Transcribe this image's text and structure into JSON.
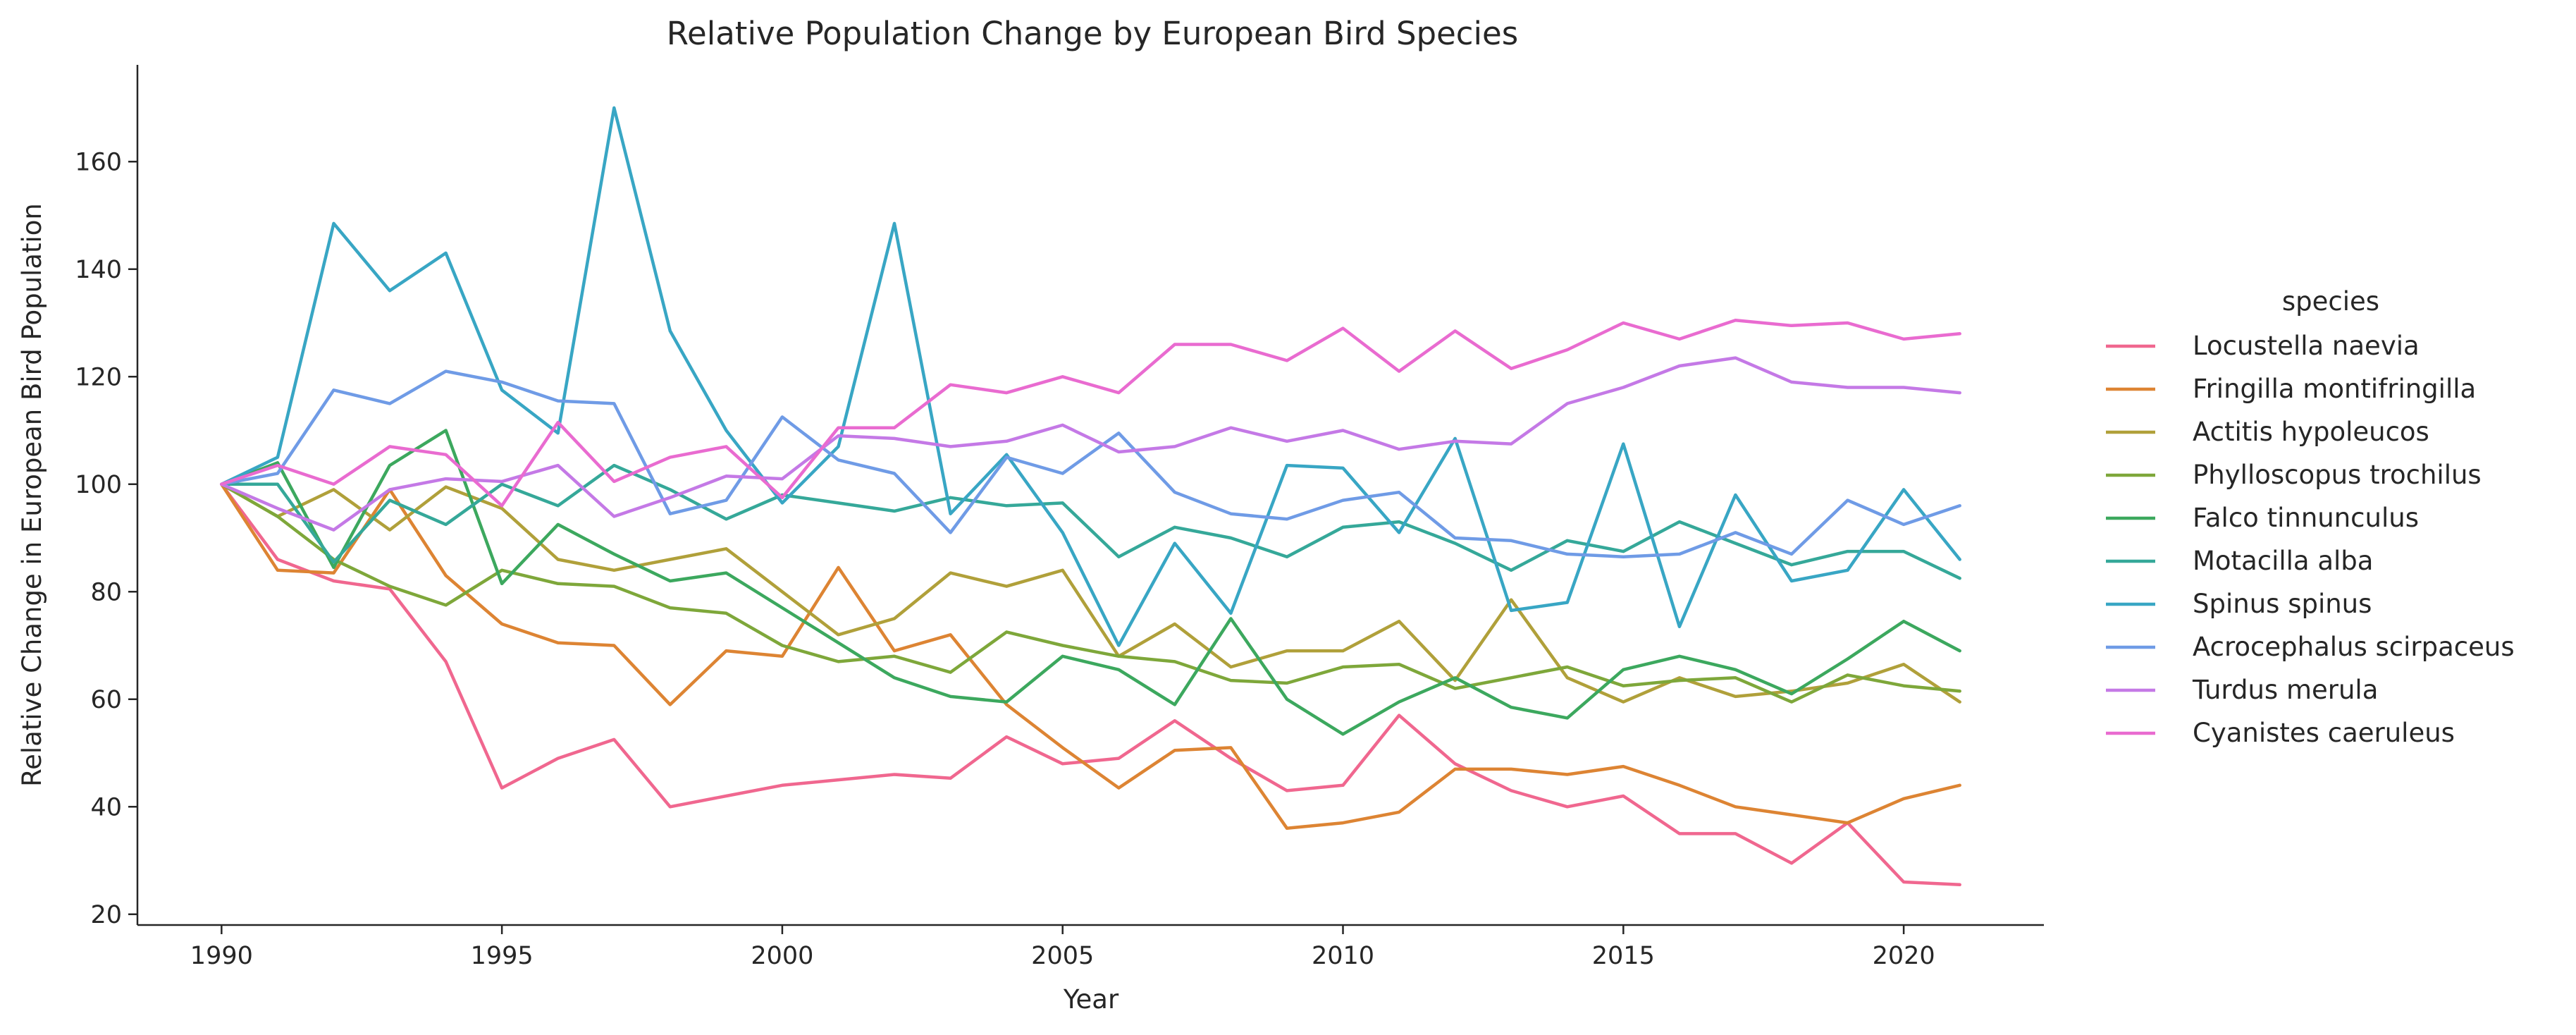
{
  "chart_data": {
    "type": "line",
    "title": "Relative Population Change by European Bird Species",
    "xlabel": "Year",
    "ylabel": "Relative Change in European Bird Population",
    "xlim": [
      1988.5,
      2022.5
    ],
    "ylim": [
      18,
      178
    ],
    "xticks": [
      1990,
      1995,
      2000,
      2005,
      2010,
      2015,
      2020
    ],
    "yticks": [
      20,
      40,
      60,
      80,
      100,
      120,
      140,
      160
    ],
    "grid": false,
    "legend": {
      "title": "species",
      "placement": "right"
    },
    "x": [
      1990,
      1991,
      1992,
      1993,
      1994,
      1995,
      1996,
      1997,
      1998,
      1999,
      2000,
      2001,
      2002,
      2003,
      2004,
      2005,
      2006,
      2007,
      2008,
      2009,
      2010,
      2011,
      2012,
      2013,
      2014,
      2015,
      2016,
      2017,
      2018,
      2019,
      2020,
      2021
    ],
    "series": [
      {
        "name": "Locustella naevia",
        "color": "#f0678f",
        "values": [
          100,
          86,
          82,
          80.5,
          67,
          43.5,
          49,
          52.5,
          40,
          42,
          44,
          45,
          46,
          45.3,
          53,
          48,
          49,
          56,
          49,
          43,
          44,
          57,
          48,
          43,
          40,
          42,
          35,
          35,
          29.5,
          37,
          26,
          25.5
        ]
      },
      {
        "name": "Fringilla montifringilla",
        "color": "#dd8433",
        "values": [
          100,
          84,
          83.5,
          99,
          83,
          74,
          70.5,
          70,
          59,
          69,
          68,
          84.5,
          69,
          72,
          59,
          51,
          43.5,
          50.5,
          51,
          36,
          37,
          39,
          47,
          47,
          46,
          47.5,
          44,
          40,
          38.5,
          37,
          41.5,
          44
        ]
      },
      {
        "name": "Actitis hypoleucos",
        "color": "#b0a03a",
        "values": [
          100,
          94,
          99,
          91.5,
          99.5,
          95.5,
          86,
          84,
          86,
          88,
          80,
          72,
          75,
          83.5,
          81,
          84,
          68,
          74,
          66,
          69,
          69,
          74.5,
          63.5,
          78.5,
          64,
          59.5,
          64,
          60.5,
          61.5,
          63,
          66.5,
          59.5
        ]
      },
      {
        "name": "Phylloscopus trochilus",
        "color": "#7ea73a",
        "values": [
          100,
          94,
          86,
          81,
          77.5,
          84,
          81.5,
          81,
          77,
          76,
          70,
          67,
          68,
          65,
          72.5,
          70,
          68,
          67,
          63.5,
          63,
          66,
          66.5,
          62,
          64,
          66,
          62.5,
          63.5,
          64,
          59.5,
          64.5,
          62.5,
          61.5
        ]
      },
      {
        "name": "Falco tinnunculus",
        "color": "#3ca85e",
        "values": [
          100,
          104,
          84.5,
          103.5,
          110,
          81.5,
          92.5,
          87,
          82,
          83.5,
          77,
          70.5,
          64,
          60.5,
          59.5,
          68,
          65.5,
          59,
          75,
          60,
          53.5,
          59.5,
          64,
          58.5,
          56.5,
          65.5,
          68,
          65.5,
          61,
          67.5,
          74.5,
          69
        ]
      },
      {
        "name": "Motacilla alba",
        "color": "#35a899",
        "values": [
          100,
          100,
          85.5,
          97,
          92.5,
          100,
          96,
          103.5,
          99,
          93.5,
          98,
          96.5,
          95,
          97.5,
          96,
          96.5,
          86.5,
          92,
          90,
          86.5,
          92,
          93,
          89,
          84,
          89.5,
          87.5,
          93,
          89,
          85,
          87.5,
          87.5,
          82.5
        ]
      },
      {
        "name": "Spinus spinus",
        "color": "#38a6c4",
        "values": [
          100,
          105,
          148.5,
          136,
          143,
          117.5,
          109.5,
          170,
          128.5,
          110,
          96.5,
          107,
          148.5,
          94.5,
          105.5,
          91,
          70,
          89,
          76,
          103.5,
          103,
          91,
          108.5,
          76.5,
          78,
          107.5,
          73.5,
          98,
          82,
          84,
          99,
          86
        ]
      },
      {
        "name": "Acrocephalus scirpaceus",
        "color": "#6f9be6",
        "values": [
          100,
          102,
          117.5,
          115,
          121,
          119,
          115.5,
          115,
          94.5,
          97,
          112.5,
          104.5,
          102,
          91,
          105,
          102,
          109.5,
          98.5,
          94.5,
          93.5,
          97,
          98.5,
          90,
          89.5,
          87,
          86.5,
          87,
          91,
          87,
          97,
          92.5,
          96
        ]
      },
      {
        "name": "Turdus merula",
        "color": "#c479e6",
        "values": [
          100,
          95.5,
          91.5,
          99,
          101,
          100.5,
          103.5,
          94,
          97.5,
          101.5,
          101,
          109,
          108.5,
          107,
          108,
          111,
          106,
          107,
          110.5,
          108,
          110,
          106.5,
          108,
          107.5,
          115,
          118,
          122,
          123.5,
          119,
          118,
          118,
          117
        ]
      },
      {
        "name": "Cyanistes caeruleus",
        "color": "#e96bd0",
        "values": [
          100,
          103.5,
          100,
          107,
          105.5,
          96,
          111.5,
          100.5,
          105,
          107,
          97.5,
          110.5,
          110.5,
          118.5,
          117,
          120,
          117,
          126,
          126,
          123,
          129,
          121,
          128.5,
          121.5,
          125,
          130,
          127,
          130.5,
          129.5,
          130,
          127,
          128
        ]
      }
    ]
  }
}
